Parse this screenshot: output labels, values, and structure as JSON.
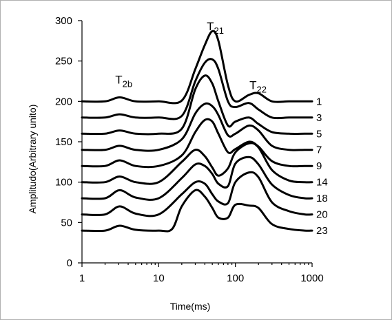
{
  "chart_data": {
    "type": "line",
    "title": "",
    "xlabel": "Time(ms)",
    "ylabel": "Amplitudo(Arbitrary unito)",
    "xscale": "log",
    "xlim": [
      1,
      1000
    ],
    "ylim": [
      0,
      300
    ],
    "x_ticks": [
      "1",
      "10",
      "100",
      "1000"
    ],
    "y_ticks": [
      "0",
      "50",
      "100",
      "150",
      "200",
      "250",
      "300"
    ],
    "grid": false,
    "legend": "none",
    "annotations": [
      {
        "text": "T",
        "sub": "2b",
        "x": 3.2,
        "y": 222
      },
      {
        "text": "T",
        "sub": "21",
        "x": 50,
        "y": 288
      },
      {
        "text": "T",
        "sub": "22",
        "x": 180,
        "y": 215
      }
    ],
    "series": [
      {
        "name": "1",
        "x": [
          1,
          2,
          3.1,
          5,
          10,
          20,
          30,
          40,
          50,
          60,
          80,
          100,
          150,
          200,
          300,
          500,
          800,
          1000
        ],
        "y": [
          200,
          200,
          205,
          200,
          200,
          201,
          240,
          270,
          287,
          275,
          220,
          200,
          208,
          210,
          200,
          200,
          200,
          200
        ]
      },
      {
        "name": "3",
        "x": [
          1,
          2,
          3.1,
          5,
          10,
          20,
          30,
          40,
          50,
          60,
          80,
          100,
          150,
          200,
          300,
          500,
          800,
          1000
        ],
        "y": [
          180,
          180,
          184,
          180,
          180,
          182,
          225,
          248,
          252,
          240,
          200,
          193,
          198,
          190,
          180,
          180,
          180,
          180
        ]
      },
      {
        "name": "5",
        "x": [
          1,
          2,
          3.1,
          5,
          10,
          20,
          30,
          40,
          50,
          60,
          80,
          100,
          150,
          200,
          300,
          500,
          800,
          1000
        ],
        "y": [
          160,
          160,
          164,
          160,
          160,
          166,
          215,
          232,
          222,
          200,
          170,
          175,
          180,
          172,
          162,
          160,
          160,
          160
        ]
      },
      {
        "name": "7",
        "x": [
          1,
          2,
          3.1,
          5,
          10,
          20,
          30,
          40,
          50,
          60,
          80,
          100,
          150,
          200,
          300,
          500,
          800,
          1000
        ],
        "y": [
          140,
          140,
          145,
          140,
          140,
          153,
          185,
          197,
          194,
          183,
          158,
          160,
          170,
          164,
          145,
          140,
          140,
          140
        ]
      },
      {
        "name": "9",
        "x": [
          1,
          2,
          3.1,
          5,
          10,
          20,
          30,
          40,
          50,
          60,
          80,
          100,
          150,
          200,
          300,
          500,
          800,
          1000
        ],
        "y": [
          120,
          120,
          127,
          120,
          120,
          133,
          162,
          177,
          175,
          160,
          137,
          141,
          150,
          144,
          126,
          120,
          120,
          120
        ]
      },
      {
        "name": "14",
        "x": [
          1,
          2,
          3.1,
          5,
          10,
          20,
          30,
          40,
          50,
          60,
          80,
          100,
          150,
          200,
          300,
          500,
          800,
          1000
        ],
        "y": [
          100,
          100,
          107,
          100,
          100,
          125,
          140,
          132,
          118,
          108,
          117,
          137,
          148,
          143,
          115,
          102,
          100,
          100
        ]
      },
      {
        "name": "18",
        "x": [
          1,
          2,
          3.1,
          5,
          10,
          20,
          30,
          40,
          50,
          60,
          80,
          100,
          150,
          200,
          300,
          500,
          800,
          1000
        ],
        "y": [
          80,
          80,
          90,
          81,
          80,
          105,
          122,
          120,
          110,
          98,
          95,
          123,
          131,
          122,
          97,
          84,
          80,
          80
        ]
      },
      {
        "name": "20",
        "x": [
          1,
          2,
          3.1,
          5,
          10,
          20,
          30,
          40,
          50,
          60,
          80,
          100,
          150,
          200,
          300,
          500,
          800,
          1000
        ],
        "y": [
          60,
          60,
          70,
          61,
          60,
          85,
          100,
          98,
          85,
          76,
          74,
          100,
          112,
          106,
          75,
          64,
          60,
          60
        ]
      },
      {
        "name": "23",
        "x": [
          1,
          2,
          3.1,
          5,
          10,
          15,
          20,
          30,
          40,
          50,
          60,
          80,
          100,
          150,
          200,
          300,
          500,
          800,
          1000
        ],
        "y": [
          40,
          40,
          46,
          41,
          40,
          42,
          70,
          90,
          82,
          68,
          56,
          56,
          72,
          71,
          68,
          48,
          42,
          40,
          40
        ]
      }
    ]
  }
}
